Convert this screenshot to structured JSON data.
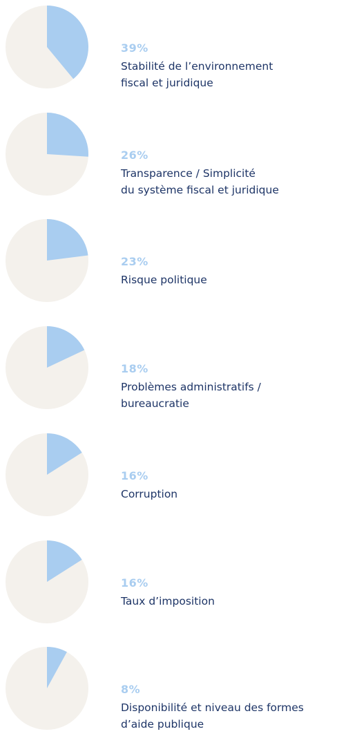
{
  "chart_data": [
    {
      "type": "pie",
      "categories": [
        "Stabilité de l’environnement\nfiscal  et juridique"
      ],
      "values": [
        39
      ],
      "value_labels": [
        "39%"
      ],
      "color": "#a9cdf0"
    },
    {
      "type": "pie",
      "categories": [
        "Transparence / Simplicité\ndu système fiscal et juridique"
      ],
      "values": [
        26
      ],
      "value_labels": [
        "26%"
      ],
      "color": "#a9cdf0"
    },
    {
      "type": "pie",
      "categories": [
        "Risque politique"
      ],
      "values": [
        23
      ],
      "value_labels": [
        "23%"
      ],
      "color": "#a9cdf0"
    },
    {
      "type": "pie",
      "categories": [
        "Problèmes administratifs /\nbureaucratie"
      ],
      "values": [
        18
      ],
      "value_labels": [
        "18%"
      ],
      "color": "#a9cdf0"
    },
    {
      "type": "pie",
      "categories": [
        "Corruption"
      ],
      "values": [
        16
      ],
      "value_labels": [
        "16%"
      ],
      "color": "#a9cdf0"
    },
    {
      "type": "pie",
      "categories": [
        "Taux d’imposition"
      ],
      "values": [
        16
      ],
      "value_labels": [
        "16%"
      ],
      "color": "#a9cdf0"
    },
    {
      "type": "pie",
      "categories": [
        "Disponibilité et niveau des formes\nd’aide publique"
      ],
      "values": [
        8
      ],
      "value_labels": [
        "8%"
      ],
      "color": "#a9cdf0"
    }
  ]
}
